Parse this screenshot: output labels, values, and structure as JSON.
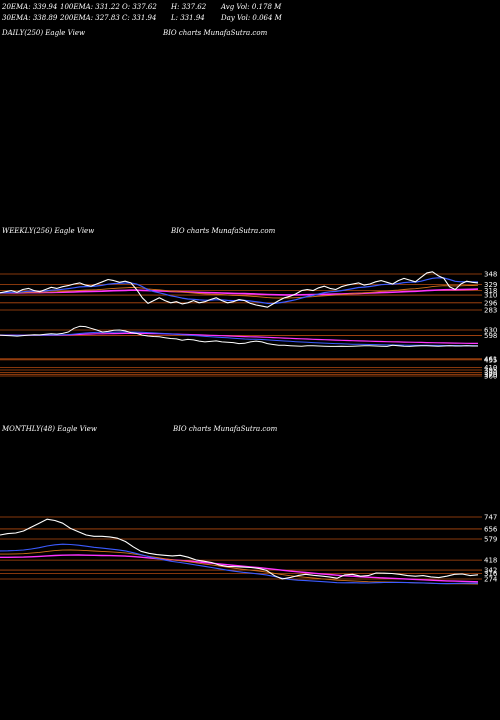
{
  "stats": {
    "row1": [
      "20EMA: 339.94",
      "100EMA: 331.22",
      "O: 337.62",
      "H: 337.62",
      "Avg Vol: 0.178  M"
    ],
    "row2": [
      "30EMA: 338.89",
      "200EMA: 327.83",
      "C: 331.94",
      "L: 331.94",
      "Day Vol: 0.064  M"
    ]
  },
  "panels": {
    "daily": {
      "left": "DAILY(250) Eagle  View",
      "right": "BIO charts MunafaSutra.com"
    },
    "weekly": {
      "left": "WEEKLY(256) Eagle  View",
      "right": "BIO charts MunafaSutra.com"
    },
    "monthly": {
      "left": "MONTHLY(48) Eagle  View",
      "right": "BIO charts MunafaSutra.com"
    }
  },
  "colors": {
    "background": "#000000",
    "price": "#ffffff",
    "ema_blue": "#3b5bff",
    "ema_orange": "#d4731c",
    "ema_magenta": "#ff33ff",
    "level": "#b34a10"
  },
  "chart_data": [
    {
      "type": "line",
      "name": "weekly-price",
      "levels": [
        "348",
        "329",
        "318",
        "310",
        "296",
        "283"
      ],
      "volume_levels": [
        "630",
        "598",
        "461",
        "455",
        "410",
        "395",
        "380",
        "370",
        "360"
      ],
      "price": [
        314,
        316,
        318,
        315,
        320,
        322,
        318,
        316,
        320,
        324,
        322,
        325,
        327,
        330,
        332,
        328,
        326,
        330,
        334,
        338,
        336,
        333,
        335,
        332,
        320,
        305,
        295,
        300,
        305,
        300,
        296,
        298,
        294,
        296,
        300,
        296,
        298,
        302,
        305,
        300,
        296,
        298,
        302,
        300,
        295,
        292,
        290,
        288,
        294,
        300,
        305,
        308,
        312,
        318,
        320,
        318,
        323,
        326,
        322,
        320,
        325,
        328,
        330,
        332,
        328,
        330,
        334,
        336,
        333,
        330,
        336,
        340,
        337,
        334,
        342,
        350,
        352,
        345,
        340,
        325,
        320,
        330,
        335,
        333,
        332
      ],
      "volume": [
        600,
        598,
        596,
        594,
        597,
        600,
        602,
        601,
        605,
        608,
        606,
        610,
        618,
        640,
        652,
        650,
        640,
        630,
        618,
        622,
        628,
        630,
        625,
        615,
        610,
        600,
        595,
        592,
        590,
        585,
        580,
        578,
        570,
        575,
        572,
        565,
        560,
        563,
        566,
        560,
        558,
        556,
        550,
        552,
        560,
        565,
        560,
        550,
        545,
        540,
        540,
        538,
        536,
        535,
        538,
        537,
        536,
        535,
        534,
        534,
        535,
        534,
        535,
        536,
        538,
        537,
        536,
        535,
        534,
        540,
        537,
        535,
        534,
        536,
        537,
        538,
        536,
        535,
        536,
        537,
        536,
        536,
        537,
        536,
        536
      ]
    },
    {
      "type": "line",
      "name": "monthly-price",
      "levels": [
        "747",
        "656",
        "579",
        "418",
        "342",
        "316",
        "274"
      ],
      "price": [
        610,
        620,
        625,
        640,
        670,
        700,
        730,
        720,
        700,
        660,
        635,
        610,
        600,
        600,
        595,
        585,
        560,
        520,
        485,
        470,
        460,
        455,
        450,
        455,
        440,
        420,
        410,
        400,
        380,
        370,
        368,
        365,
        362,
        355,
        340,
        300,
        275,
        285,
        300,
        310,
        302,
        296,
        290,
        280,
        305,
        310,
        295,
        300,
        320,
        318,
        316,
        310,
        300,
        295,
        300,
        290,
        285,
        295,
        310,
        312,
        300,
        306
      ]
    }
  ]
}
